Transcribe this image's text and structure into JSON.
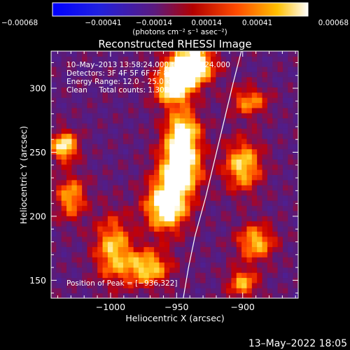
{
  "colorbar": {
    "ticks": [
      "-0.00068",
      "-0.00041",
      "-0.00014",
      "0.00014",
      "0.00041",
      "0.00068"
    ],
    "tick_values": [
      -0.00068,
      -0.00041,
      -0.00014,
      0.00014,
      0.00041,
      0.00068
    ],
    "units_label": "(photons cm⁻² s⁻¹ asec⁻²)",
    "colors": [
      "#0000ff",
      "#5a2aa0",
      "#5b1a7e",
      "#b30000",
      "#ff4b00",
      "#ffc000",
      "#ffffff"
    ]
  },
  "chart_data": {
    "type": "heatmap",
    "title": "Reconstructed RHESSI Image",
    "xlabel": "Heliocentric X (arcsec)",
    "ylabel": "Heliocentric Y (arcsec)",
    "xlim": [
      -1045,
      -858
    ],
    "ylim": [
      136,
      329
    ],
    "xticks": [
      -1000,
      -950,
      -900
    ],
    "xtick_labels": [
      "−1000",
      "−950",
      "−900"
    ],
    "yticks": [
      150,
      200,
      250,
      300
    ],
    "ytick_labels": [
      "150",
      "200",
      "250",
      "300"
    ],
    "info_lines": [
      "10–May–2013 13:58:24.000 to 14:04:24.000",
      "Detectors: 3F 4F 5F 6F 7F 8F, Att 0",
      "Energy Range: 12.0 – 25.0 keV",
      "Clean     Total counts: 1.30E+04"
    ],
    "peak_label": "Position of Peak = [−936,322]",
    "peak": [
      -936,
      322
    ],
    "limb": [
      [
        -945,
        136
      ],
      [
        -941,
        160
      ],
      [
        -936,
        185
      ],
      [
        -928,
        215
      ],
      [
        -921,
        245
      ],
      [
        -914,
        275
      ],
      [
        -907,
        305
      ],
      [
        -901,
        329
      ]
    ],
    "sources": [
      {
        "x": -940,
        "y": 318,
        "amp": 1.0,
        "sx": 12,
        "sy": 10
      },
      {
        "x": -952,
        "y": 300,
        "amp": 0.75,
        "sx": 10,
        "sy": 10
      },
      {
        "x": -947,
        "y": 240,
        "amp": 0.85,
        "sx": 11,
        "sy": 16
      },
      {
        "x": -958,
        "y": 208,
        "amp": 0.8,
        "sx": 11,
        "sy": 14
      },
      {
        "x": -945,
        "y": 268,
        "amp": 0.6,
        "sx": 9,
        "sy": 10
      },
      {
        "x": -972,
        "y": 160,
        "amp": 0.6,
        "sx": 12,
        "sy": 10
      },
      {
        "x": -998,
        "y": 175,
        "amp": 0.55,
        "sx": 10,
        "sy": 18
      },
      {
        "x": -1035,
        "y": 255,
        "amp": 0.7,
        "sx": 7,
        "sy": 8
      },
      {
        "x": -1030,
        "y": 215,
        "amp": 0.5,
        "sx": 8,
        "sy": 12
      },
      {
        "x": -900,
        "y": 240,
        "amp": 0.6,
        "sx": 10,
        "sy": 14
      },
      {
        "x": -890,
        "y": 180,
        "amp": 0.55,
        "sx": 10,
        "sy": 10
      },
      {
        "x": -895,
        "y": 290,
        "amp": 0.45,
        "sx": 10,
        "sy": 8
      },
      {
        "x": -900,
        "y": 148,
        "amp": 0.5,
        "sx": 8,
        "sy": 8
      }
    ]
  },
  "footer": {
    "timestamp": "13–May–2022 18:05"
  }
}
